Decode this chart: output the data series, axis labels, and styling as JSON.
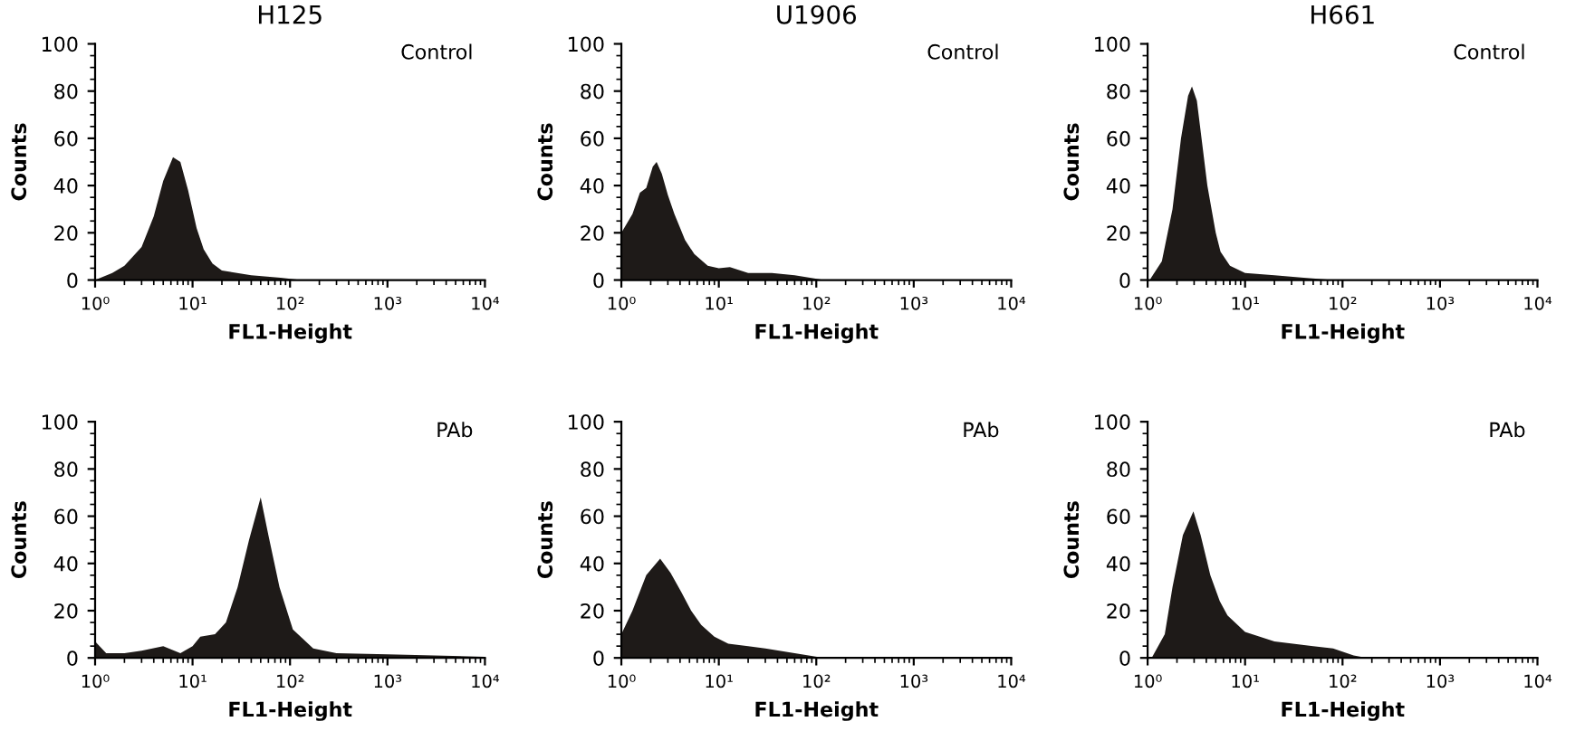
{
  "chart_data": [
    {
      "type": "area",
      "title": "H125",
      "xlabel": "FL1-Height",
      "ylabel": "Counts",
      "annotations": [
        "Control"
      ],
      "log": "x",
      "xlim": [
        1,
        10000
      ],
      "ylim": [
        0,
        100
      ],
      "xticks": [
        {
          "value": 1,
          "label": "10⁰"
        },
        {
          "value": 10,
          "label": "10¹"
        },
        {
          "value": 100,
          "label": "10²"
        },
        {
          "value": 1000,
          "label": "10³"
        },
        {
          "value": 10000,
          "label": "10⁴"
        }
      ],
      "yticks": [
        0,
        20,
        40,
        60,
        80,
        100
      ],
      "grid": false,
      "legend": false,
      "series": [
        {
          "color": "#1e1a18",
          "x": [
            1,
            1.5,
            2,
            3,
            4,
            5,
            6.3,
            7.5,
            9,
            11,
            13,
            16,
            20,
            40,
            80,
            130
          ],
          "values": [
            0,
            3,
            6,
            14,
            27,
            42,
            52,
            50,
            38,
            22,
            13,
            7,
            4,
            2,
            1,
            0
          ]
        }
      ]
    },
    {
      "type": "area",
      "title": "U1906",
      "xlabel": "FL1-Height",
      "ylabel": "Counts",
      "annotations": [
        "Control"
      ],
      "log": "x",
      "xlim": [
        1,
        10000
      ],
      "ylim": [
        0,
        100
      ],
      "xticks": [
        {
          "value": 1,
          "label": "10⁰"
        },
        {
          "value": 10,
          "label": "10¹"
        },
        {
          "value": 100,
          "label": "10²"
        },
        {
          "value": 1000,
          "label": "10³"
        },
        {
          "value": 10000,
          "label": "10⁴"
        }
      ],
      "yticks": [
        0,
        20,
        40,
        60,
        80,
        100
      ],
      "grid": false,
      "legend": false,
      "series": [
        {
          "color": "#1e1a18",
          "x": [
            1,
            1.3,
            1.55,
            1.8,
            2.1,
            2.3,
            2.6,
            3,
            3.5,
            4.5,
            5.6,
            7.7,
            10,
            13,
            20,
            35,
            60,
            120
          ],
          "values": [
            20,
            28,
            37,
            39,
            48,
            50,
            45,
            36,
            28,
            17,
            11,
            6,
            5,
            5.5,
            3,
            3,
            2,
            0
          ]
        }
      ]
    },
    {
      "type": "area",
      "title": "H661",
      "xlabel": "FL1-Height",
      "ylabel": "Counts",
      "annotations": [
        "Control"
      ],
      "log": "x",
      "xlim": [
        1,
        10000
      ],
      "ylim": [
        0,
        100
      ],
      "xticks": [
        {
          "value": 1,
          "label": "10⁰"
        },
        {
          "value": 10,
          "label": "10¹"
        },
        {
          "value": 100,
          "label": "10²"
        },
        {
          "value": 1000,
          "label": "10³"
        },
        {
          "value": 10000,
          "label": "10⁴"
        }
      ],
      "yticks": [
        0,
        20,
        40,
        60,
        80,
        100
      ],
      "grid": false,
      "legend": false,
      "series": [
        {
          "color": "#1e1a18",
          "x": [
            1.05,
            1.4,
            1.8,
            2.2,
            2.6,
            2.85,
            3.2,
            3.7,
            4.1,
            5,
            5.6,
            7,
            10,
            20,
            40,
            80
          ],
          "values": [
            0,
            8,
            30,
            60,
            78,
            82,
            76,
            55,
            40,
            20,
            12,
            6,
            3,
            2,
            1,
            0
          ]
        }
      ]
    },
    {
      "type": "area",
      "xlabel": "FL1-Height",
      "ylabel": "Counts",
      "annotations": [
        "PAb"
      ],
      "log": "x",
      "xlim": [
        1,
        10000
      ],
      "ylim": [
        0,
        100
      ],
      "xticks": [
        {
          "value": 1,
          "label": "10⁰"
        },
        {
          "value": 10,
          "label": "10¹"
        },
        {
          "value": 100,
          "label": "10²"
        },
        {
          "value": 1000,
          "label": "10³"
        },
        {
          "value": 10000,
          "label": "10⁴"
        }
      ],
      "yticks": [
        0,
        20,
        40,
        60,
        80,
        100
      ],
      "grid": false,
      "legend": false,
      "series": [
        {
          "color": "#1e1a18",
          "x": [
            1,
            1.3,
            2,
            3,
            5,
            7.5,
            10,
            12,
            17,
            22,
            29,
            38,
            50,
            60,
            78,
            107,
            173,
            300,
            1000,
            3000,
            10000
          ],
          "values": [
            7,
            2,
            2,
            3,
            5,
            2,
            5,
            9,
            10,
            15,
            30,
            50,
            68,
            52,
            30,
            12,
            4,
            2,
            1.5,
            1,
            0.5
          ]
        }
      ]
    },
    {
      "type": "area",
      "xlabel": "FL1-Height",
      "ylabel": "Counts",
      "annotations": [
        "PAb"
      ],
      "log": "x",
      "xlim": [
        1,
        10000
      ],
      "ylim": [
        0,
        100
      ],
      "xticks": [
        {
          "value": 1,
          "label": "10⁰"
        },
        {
          "value": 10,
          "label": "10¹"
        },
        {
          "value": 100,
          "label": "10²"
        },
        {
          "value": 1000,
          "label": "10³"
        },
        {
          "value": 10000,
          "label": "10⁴"
        }
      ],
      "yticks": [
        0,
        20,
        40,
        60,
        80,
        100
      ],
      "grid": false,
      "legend": false,
      "series": [
        {
          "color": "#1e1a18",
          "x": [
            1,
            1.3,
            1.8,
            2.5,
            3.2,
            4.1,
            5.2,
            6.6,
            9,
            12.5,
            20,
            30,
            60,
            120
          ],
          "values": [
            10,
            20,
            35,
            42,
            36,
            28,
            20,
            14,
            9,
            6,
            5,
            4,
            2,
            0
          ]
        }
      ]
    },
    {
      "type": "area",
      "xlabel": "FL1-Height",
      "ylabel": "Counts",
      "annotations": [
        "PAb"
      ],
      "log": "x",
      "xlim": [
        1,
        10000
      ],
      "ylim": [
        0,
        100
      ],
      "xticks": [
        {
          "value": 1,
          "label": "10⁰"
        },
        {
          "value": 10,
          "label": "10¹"
        },
        {
          "value": 100,
          "label": "10²"
        },
        {
          "value": 1000,
          "label": "10³"
        },
        {
          "value": 10000,
          "label": "10⁴"
        }
      ],
      "yticks": [
        0,
        20,
        40,
        60,
        80,
        100
      ],
      "grid": false,
      "legend": false,
      "series": [
        {
          "color": "#1e1a18",
          "x": [
            1.1,
            1.5,
            1.8,
            2.3,
            2.95,
            3.5,
            4.4,
            5.5,
            6.6,
            10,
            20,
            50,
            80,
            130,
            180
          ],
          "values": [
            0,
            10,
            30,
            52,
            62,
            52,
            35,
            24,
            18,
            11,
            7,
            5,
            4,
            1,
            0
          ]
        }
      ]
    }
  ]
}
